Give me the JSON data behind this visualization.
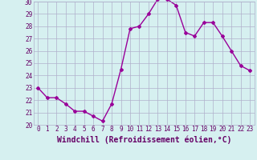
{
  "x": [
    0,
    1,
    2,
    3,
    4,
    5,
    6,
    7,
    8,
    9,
    10,
    11,
    12,
    13,
    14,
    15,
    16,
    17,
    18,
    19,
    20,
    21,
    22,
    23
  ],
  "y": [
    23.0,
    22.2,
    22.2,
    21.7,
    21.1,
    21.1,
    20.7,
    20.3,
    21.7,
    24.5,
    27.8,
    28.0,
    29.0,
    30.2,
    30.2,
    29.7,
    27.5,
    27.2,
    28.3,
    28.3,
    27.2,
    26.0,
    24.8,
    24.4
  ],
  "line_color": "#990099",
  "marker": "D",
  "marker_size": 2,
  "linewidth": 1.0,
  "xlabel": "Windchill (Refroidissement éolien,°C)",
  "xlabel_fontsize": 7,
  "ylim": [
    20,
    30
  ],
  "yticks": [
    20,
    21,
    22,
    23,
    24,
    25,
    26,
    27,
    28,
    29,
    30
  ],
  "xticks": [
    0,
    1,
    2,
    3,
    4,
    5,
    6,
    7,
    8,
    9,
    10,
    11,
    12,
    13,
    14,
    15,
    16,
    17,
    18,
    19,
    20,
    21,
    22,
    23
  ],
  "background_color": "#d6f0f0",
  "grid_color": "#b0b0cc",
  "tick_color": "#660066",
  "tick_fontsize": 5.5
}
